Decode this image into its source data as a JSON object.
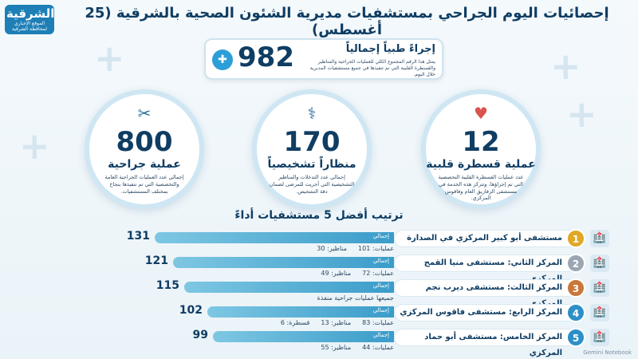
{
  "logo": {
    "name": "الشرقية",
    "subtitle": "الموقع الإخباري لمحافظة الشرقية"
  },
  "title": "إحصائيات اليوم الجراحي بمستشفيات مديرية الشئون الصحية بالشرقية (25 أغسطس)",
  "total": {
    "value": "982",
    "label": "إجراءً طبياً إجمالياً",
    "description": "يمثل هذا الرقم المجموع الكلي للعمليات الجراحية والمناظير والقسطرة القلبية التي تم تنفيذها في جميع مستشفيات المديرية خلال اليوم."
  },
  "cards": [
    {
      "icon": "surgery-icon",
      "value": "800",
      "label": "عملية جراحية",
      "description": "إجمالي عدد العمليات الجراحية العامة والتخصصية التي تم تنفيذها بنجاح بمختلف المستشفيات."
    },
    {
      "icon": "endoscope-icon",
      "value": "170",
      "label": "منظاراً تشخيصياً",
      "description": "إجمالي عدد التدخلات والمناظير التشخيصية التي أجريت للمرضى لضمان دقة التشخيص."
    },
    {
      "icon": "heart-icon",
      "value": "12",
      "label": "عملية قسطرة قلبية",
      "description": "عدد عمليات القسطرة القلبية التخصصية التي تم إجراؤها، وتتركز هذه الخدمة في مستشفى الزقازيق العام وفاقوس المركزي."
    }
  ],
  "ranking": {
    "title": "ترتيب أفضل 5 مستشفيات أداءً",
    "total_tag": "إجمالي",
    "max": 131,
    "items": [
      {
        "rank": "1",
        "name": "مستشفى أبو كبير المركزي في الصدارة",
        "total": 131,
        "total_label": "131",
        "stats": [
          "عمليات: 101",
          "مناظير: 30"
        ],
        "color": "#e0a826"
      },
      {
        "rank": "2",
        "name": "المركز الثاني: مستشفى منيا القمح المركزي",
        "total": 121,
        "total_label": "121",
        "stats": [
          "عمليات: 72",
          "مناظير: 49"
        ],
        "color": "#9aa7b3"
      },
      {
        "rank": "3",
        "name": "المركز الثالث: مستشفى ديرب نجم المركزي",
        "total": 115,
        "total_label": "115",
        "stats": [
          "جميعها عمليات جراحية منفذة"
        ],
        "color": "#c9773a"
      },
      {
        "rank": "4",
        "name": "المركز الرابع: مستشفى فاقوس المركزي",
        "total": 102,
        "total_label": "102",
        "stats": [
          "عمليات: 83",
          "مناظير: 13",
          "قسطرة: 6"
        ],
        "color": "#2d8fc7"
      },
      {
        "rank": "5",
        "name": "المركز الخامس: مستشفى أبو حماد المركزي",
        "total": 99,
        "total_label": "99",
        "stats": [
          "عمليات: 44",
          "مناظير: 55"
        ],
        "color": "#2d8fc7"
      }
    ]
  },
  "footer": "Gemini Notebook"
}
